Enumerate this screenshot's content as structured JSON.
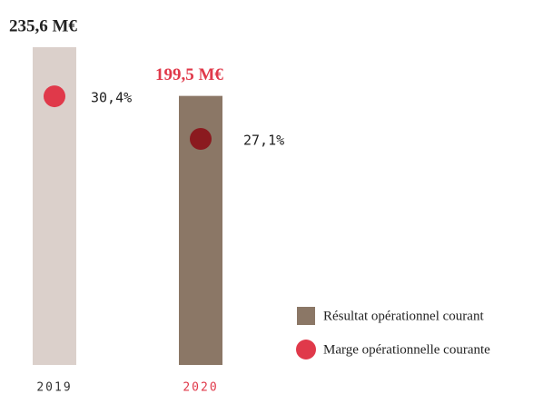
{
  "chart_data": {
    "type": "bar",
    "categories": [
      "2019",
      "2020"
    ],
    "category_colors": [
      "#333333",
      "#e0394a"
    ],
    "ylim": [
      0,
      235.6
    ],
    "y2lim": [
      9.6,
      34.2
    ],
    "series": [
      {
        "name": "Résultat opérationnel courant",
        "color": "#8b7766",
        "colors": [
          "#dbd0cb",
          "#8b7766"
        ],
        "values": [
          235.6,
          199.5
        ],
        "value_labels": [
          "235,6 M€",
          "199,5 M€"
        ],
        "label_colors": [
          "#222222",
          "#e0394a"
        ]
      },
      {
        "name": "Marge opérationnelle courante",
        "axis": "y2",
        "color": "#e0394a",
        "colors": [
          "#e0394a",
          "#8b1a1f"
        ],
        "values": [
          30.4,
          27.1
        ],
        "value_labels": [
          "30,4%",
          "27,1%"
        ]
      }
    ]
  }
}
